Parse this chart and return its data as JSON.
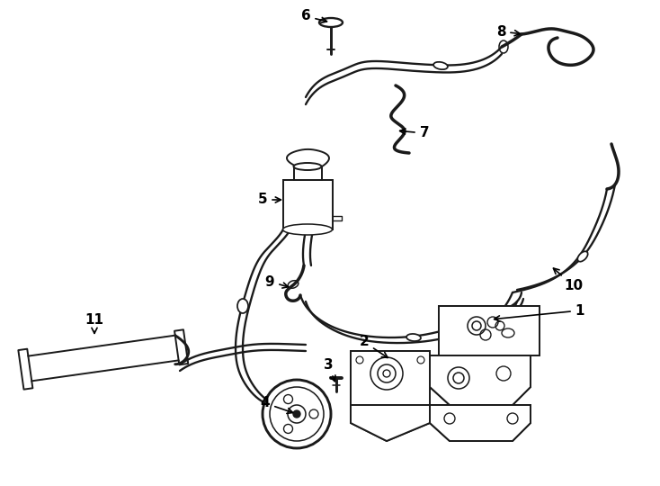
{
  "background_color": "#ffffff",
  "line_color": "#1a1a1a",
  "line_width": 1.4,
  "label_fontsize": 11,
  "label_color": "#000000",
  "figsize": [
    7.34,
    5.4
  ],
  "dpi": 100
}
